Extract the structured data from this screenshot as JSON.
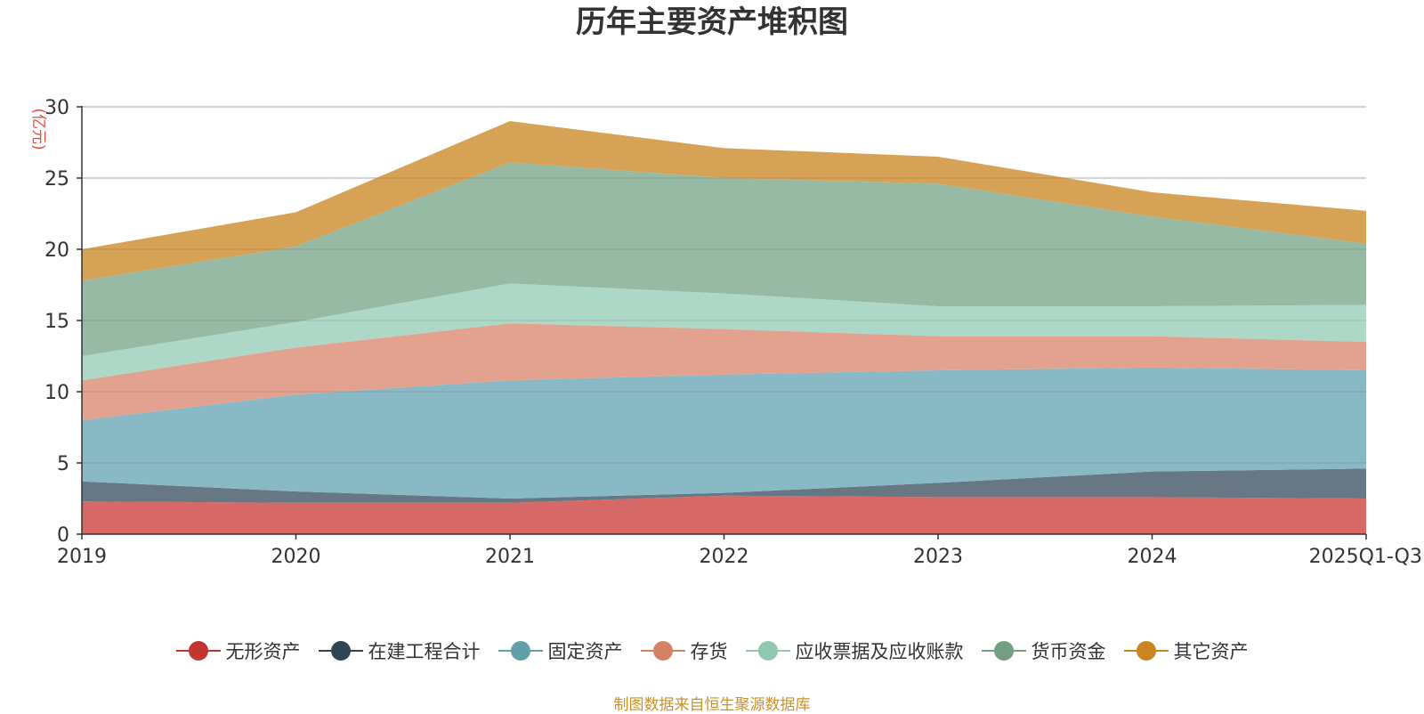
{
  "chart_data": {
    "type": "area",
    "stacked": true,
    "title": "历年主要资产堆积图",
    "ylabel": "(亿元)",
    "xlabel": "",
    "categories": [
      "2019",
      "2020",
      "2021",
      "2022",
      "2023",
      "2024",
      "2025Q1-Q3"
    ],
    "ylim": [
      0,
      30
    ],
    "yticks": [
      0,
      5,
      10,
      15,
      20,
      25,
      30
    ],
    "grid": true,
    "legend_position": "bottom",
    "series": [
      {
        "name": "无形资产",
        "color": "#d45b5b",
        "values": [
          2.3,
          2.2,
          2.2,
          2.7,
          2.6,
          2.6,
          2.5
        ]
      },
      {
        "name": "在建工程合计",
        "color": "#5b6b7a",
        "values": [
          1.4,
          0.8,
          0.3,
          0.2,
          1.0,
          1.8,
          2.1
        ]
      },
      {
        "name": "固定资产",
        "color": "#7fb3bf",
        "values": [
          4.3,
          6.8,
          8.3,
          8.3,
          7.9,
          7.3,
          6.9
        ]
      },
      {
        "name": "存货",
        "color": "#e09a86",
        "values": [
          2.8,
          3.3,
          4.0,
          3.2,
          2.4,
          2.2,
          2.0
        ]
      },
      {
        "name": "应收票据及应收账款",
        "color": "#a6d4c1",
        "values": [
          1.7,
          1.8,
          2.8,
          2.5,
          2.1,
          2.1,
          2.6
        ]
      },
      {
        "name": "货币资金",
        "color": "#8db49c",
        "values": [
          5.3,
          5.3,
          8.5,
          8.1,
          8.6,
          6.3,
          4.3
        ]
      },
      {
        "name": "其它资产",
        "color": "#d29a47",
        "values": [
          2.2,
          2.4,
          2.9,
          2.1,
          1.9,
          1.7,
          2.3
        ]
      }
    ],
    "legend_colors": [
      "#c23531",
      "#2f4554",
      "#61a0a8",
      "#d48265",
      "#91c7ae",
      "#749f83",
      "#ca8622"
    ]
  },
  "footer": {
    "source": "制图数据来自恒生聚源数据库"
  }
}
